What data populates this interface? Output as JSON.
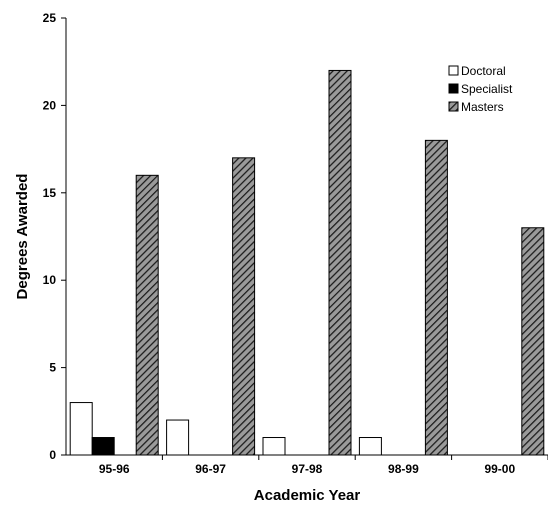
{
  "chart_data": {
    "type": "bar",
    "categories": [
      "95-96",
      "96-97",
      "97-98",
      "98-99",
      "99-00"
    ],
    "series": [
      {
        "name": "Doctoral",
        "values": [
          3,
          2,
          1,
          1,
          0
        ],
        "color": "#ffffff",
        "pattern": "none"
      },
      {
        "name": "Specialist",
        "values": [
          1,
          0,
          0,
          0,
          0
        ],
        "color": "#000000",
        "pattern": "none"
      },
      {
        "name": "Masters",
        "values": [
          16,
          17,
          22,
          18,
          13
        ],
        "color": "#808080",
        "pattern": "diagonal-hatch"
      }
    ],
    "xlabel": "Academic Year",
    "ylabel": "Degrees Awarded",
    "ylim": [
      0,
      25
    ],
    "yticks": [
      0,
      5,
      10,
      15,
      20,
      25
    ],
    "grid": false,
    "legend_position": "top-right"
  }
}
